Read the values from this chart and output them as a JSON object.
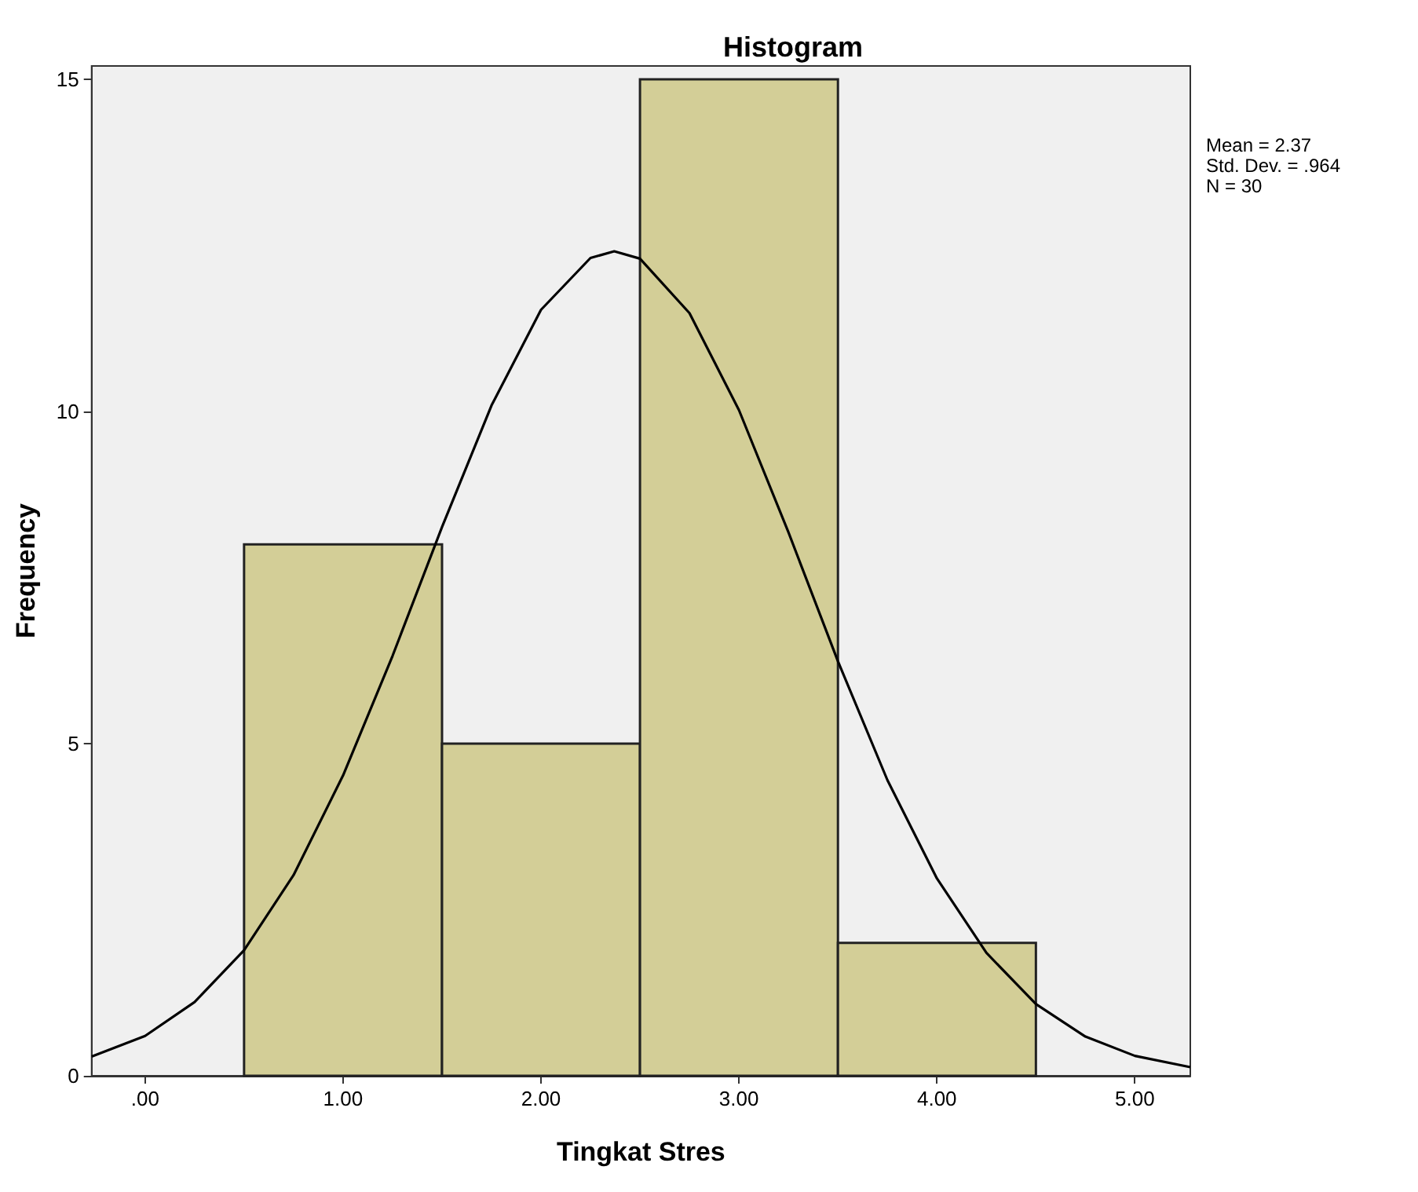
{
  "chart_data": {
    "type": "histogram",
    "title": "Histogram",
    "xlabel": "Tingkat Stres",
    "ylabel": "Frequency",
    "bins": [
      0.5,
      1.5,
      2.5,
      3.5,
      4.5
    ],
    "values": [
      8,
      5,
      15,
      2
    ],
    "color": "#d3ce97",
    "series": [
      {
        "type": "line",
        "color": "#000000",
        "x": [
          -0.27,
          0,
          0.25,
          0.5,
          0.75,
          1,
          1.25,
          1.5,
          1.75,
          2,
          2.25,
          2.37,
          2.5,
          2.75,
          3,
          3.25,
          3.5,
          3.75,
          4,
          4.25,
          4.5,
          4.75,
          5,
          5.28
        ],
        "values": [
          0.29,
          0.6,
          1.11,
          1.89,
          3.02,
          4.52,
          6.32,
          8.26,
          10.09,
          11.53,
          12.31,
          12.41,
          12.3,
          11.48,
          10.02,
          8.18,
          6.24,
          4.45,
          2.97,
          1.85,
          1.08,
          0.59,
          0.3,
          0.13
        ]
      }
    ],
    "xlim": [
      -0.27,
      5.28
    ],
    "xticks": [
      {
        "value": 0,
        "label": ".00"
      },
      {
        "value": 1,
        "label": "1.00"
      },
      {
        "value": 2,
        "label": "2.00"
      },
      {
        "value": 3,
        "label": "3.00"
      },
      {
        "value": 4,
        "label": "4.00"
      },
      {
        "value": 5,
        "label": "5.00"
      }
    ],
    "ylim": [
      0,
      15.2
    ],
    "yticks": [
      0,
      5,
      10,
      15
    ],
    "annotations": [
      "Mean = 2.37",
      "Std. Dev. = .964",
      "N = 30"
    ]
  }
}
